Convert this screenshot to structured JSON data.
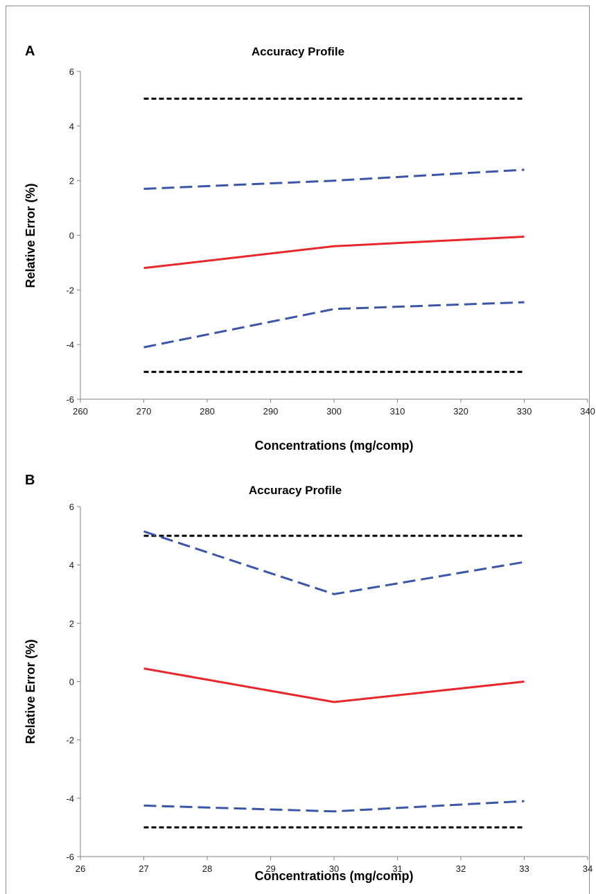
{
  "panels": [
    {
      "label": "A",
      "chart_data": {
        "type": "line",
        "title": "Accuracy Profile",
        "xlabel": "Concentrations (mg/comp)",
        "ylabel": "Relative Error (%)",
        "xlim": [
          260,
          340
        ],
        "ylim": [
          -6,
          6
        ],
        "xticks": [
          "260",
          "280",
          "290",
          "300",
          "310",
          "320",
          "330",
          "340"
        ],
        "xtick_values": [
          260,
          280,
          290,
          300,
          310,
          320,
          330,
          340
        ],
        "xticks_full": [
          "260",
          "270",
          "280",
          "290",
          "300",
          "310",
          "320",
          "330",
          "340"
        ],
        "yticks": [
          "6",
          "4",
          "2",
          "0",
          "-2",
          "-4",
          "-6"
        ],
        "grid": false,
        "legend": "none",
        "series": [
          {
            "role": "upper-acceptance-limit",
            "color": "#000000",
            "style": "dotted",
            "x": [
              270,
              330
            ],
            "y": [
              5,
              5
            ]
          },
          {
            "role": "upper-tolerance-limit",
            "color": "#3b55a8",
            "style": "dashed",
            "x": [
              270,
              300,
              330
            ],
            "y": [
              1.7,
              2.0,
              2.4
            ]
          },
          {
            "role": "relative-bias",
            "color": "#e8262b",
            "style": "solid",
            "x": [
              270,
              300,
              330
            ],
            "y": [
              -1.2,
              -0.4,
              -0.05
            ]
          },
          {
            "role": "lower-tolerance-limit",
            "color": "#3b55a8",
            "style": "dashed",
            "x": [
              270,
              300,
              330
            ],
            "y": [
              -4.1,
              -2.7,
              -2.45
            ]
          },
          {
            "role": "lower-acceptance-limit",
            "color": "#000000",
            "style": "dotted",
            "x": [
              270,
              330
            ],
            "y": [
              -5,
              -5
            ]
          }
        ]
      }
    },
    {
      "label": "B",
      "chart_data": {
        "type": "line",
        "title": "Accuracy Profile",
        "xlabel": "Concentrations (mg/comp)",
        "ylabel": "Relative Error (%)",
        "xlim": [
          26,
          34
        ],
        "ylim": [
          -6,
          6
        ],
        "xticks_full": [
          "26",
          "27",
          "28",
          "29",
          "30",
          "31",
          "32",
          "33",
          "34"
        ],
        "yticks": [
          "6",
          "4",
          "2",
          "0",
          "-2",
          "-4",
          "-6"
        ],
        "grid": false,
        "legend": "none",
        "series": [
          {
            "role": "upper-acceptance-limit",
            "color": "#000000",
            "style": "dotted",
            "x": [
              27,
              33
            ],
            "y": [
              5,
              5
            ]
          },
          {
            "role": "upper-tolerance-limit",
            "color": "#3b55a8",
            "style": "dashed",
            "x": [
              27,
              30,
              33
            ],
            "y": [
              5.15,
              3.0,
              4.1
            ]
          },
          {
            "role": "relative-bias",
            "color": "#e8262b",
            "style": "solid",
            "x": [
              27,
              30,
              33
            ],
            "y": [
              0.45,
              -0.7,
              0.0
            ]
          },
          {
            "role": "lower-tolerance-limit",
            "color": "#3b55a8",
            "style": "dashed",
            "x": [
              27,
              30,
              33
            ],
            "y": [
              -4.25,
              -4.45,
              -4.1
            ]
          },
          {
            "role": "lower-acceptance-limit",
            "color": "#000000",
            "style": "dotted",
            "x": [
              27,
              33
            ],
            "y": [
              -5,
              -5
            ]
          }
        ]
      }
    }
  ]
}
